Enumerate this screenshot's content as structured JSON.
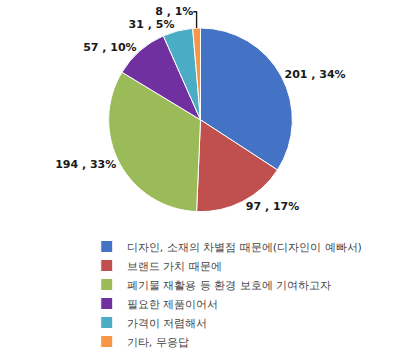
{
  "chart_data": {
    "type": "pie",
    "categories": [
      "디자인, 소재의 차별점 때문에(디자인이 예빠서)",
      "브랜드 가치 때문에",
      "폐기물 재활용 등 환경 보호에 기여하고자",
      "필요한 제품이어서",
      "가격이 저렴해서",
      "기타, 무응답"
    ],
    "values": [
      201,
      97,
      194,
      57,
      31,
      8
    ],
    "value_labels": [
      "201 , 34%",
      "97 , 17%",
      "194 , 33%",
      "57 , 10%",
      "31 , 5%",
      "8 , 1%"
    ],
    "colors": [
      "#4472C4",
      "#C0504D",
      "#9BBB59",
      "#7030A0",
      "#4BACC6",
      "#F79646"
    ],
    "data_labels": true,
    "legend": "bottom"
  }
}
